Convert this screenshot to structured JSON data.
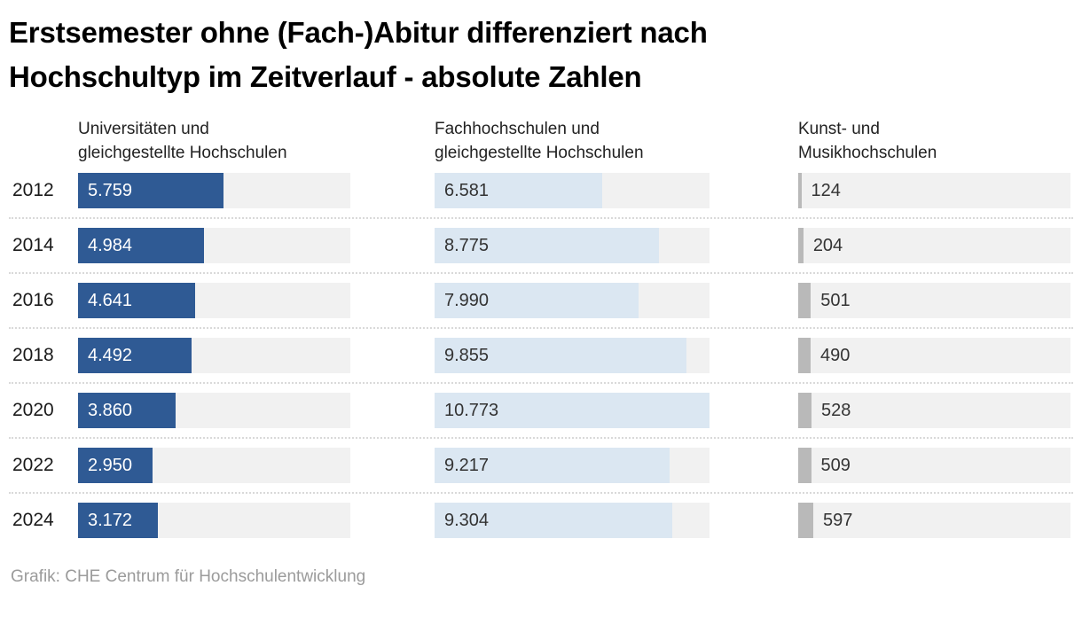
{
  "title": "Erstsemester ohne (Fach-)Abitur differenziert nach\nHochschultyp im Zeitverlauf - absolute Zahlen",
  "columns": [
    {
      "label": "Universitäten und\ngleichgestellte Hochschulen"
    },
    {
      "label": "Fachhochschulen und\ngleichgestellte Hochschulen"
    },
    {
      "label": "Kunst- und\nMusikhochschulen"
    }
  ],
  "source": "Grafik: CHE Centrum für Hochschulentwicklung",
  "colors": {
    "universitaeten_bar": "#2f5a94",
    "fachhochschulen_bar": "#dbe7f2",
    "kunst_musik_bar": "#b9b9b9",
    "bar_track": "#f1f1f1",
    "separator": "#d9d9d9",
    "value_dark_text": "#333333",
    "value_light_text": "#ffffff"
  },
  "chart_data": {
    "type": "bar",
    "orientation": "horizontal",
    "title": "Erstsemester ohne (Fach-)Abitur differenziert nach Hochschultyp im Zeitverlauf - absolute Zahlen",
    "categories": [
      "2012",
      "2014",
      "2016",
      "2018",
      "2020",
      "2022",
      "2024"
    ],
    "xmax": 10773,
    "grid": false,
    "legend_position": "column-headers-top",
    "track_color": "#f1f1f1",
    "series": [
      {
        "name": "Universitäten und gleichgestellte Hochschulen",
        "color": "#2f5a94",
        "label_color": "#ffffff",
        "label_outside": false,
        "values": [
          5759,
          4984,
          4641,
          4492,
          3860,
          2950,
          3172
        ],
        "labels": [
          "5.759",
          "4.984",
          "4.641",
          "4.492",
          "3.860",
          "2.950",
          "3.172"
        ]
      },
      {
        "name": "Fachhochschulen und gleichgestellte Hochschulen",
        "color": "#dbe7f2",
        "label_color": "#333333",
        "label_outside": false,
        "values": [
          6581,
          8775,
          7990,
          9855,
          10773,
          9217,
          9304
        ],
        "labels": [
          "6.581",
          "8.775",
          "7.990",
          "9.855",
          "10.773",
          "9.217",
          "9.304"
        ]
      },
      {
        "name": "Kunst- und Musikhochschulen",
        "color": "#b9b9b9",
        "label_color": "#333333",
        "label_outside": true,
        "values": [
          124,
          204,
          501,
          490,
          528,
          509,
          597
        ],
        "labels": [
          "124",
          "204",
          "501",
          "490",
          "528",
          "509",
          "597"
        ]
      }
    ]
  }
}
